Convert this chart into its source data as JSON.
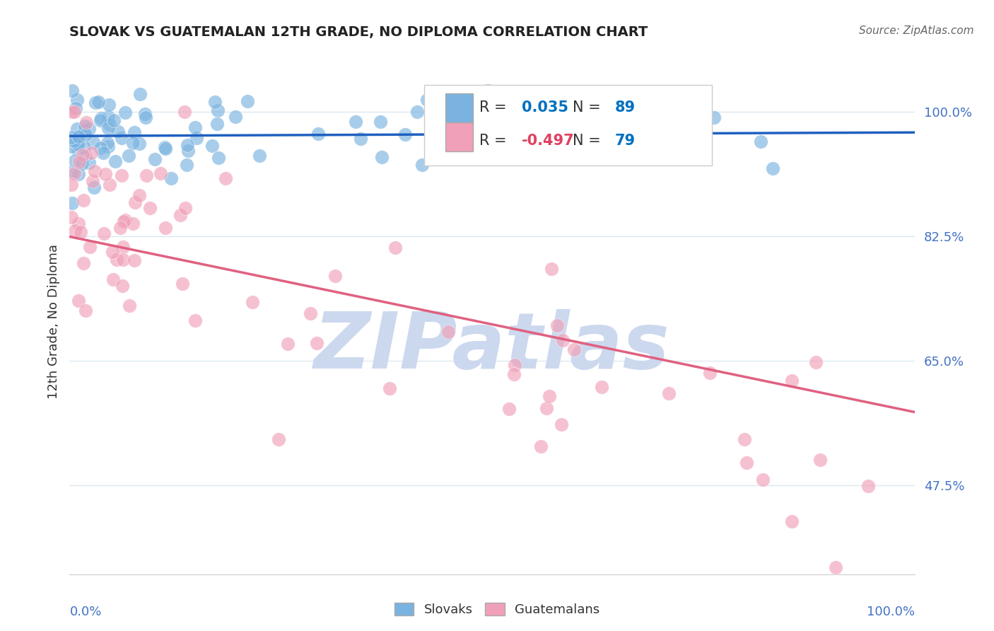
{
  "title": "SLOVAK VS GUATEMALAN 12TH GRADE, NO DIPLOMA CORRELATION CHART",
  "source": "Source: ZipAtlas.com",
  "ylabel": "12th Grade, No Diploma",
  "yticks": [
    47.5,
    65.0,
    82.5,
    100.0
  ],
  "legend_entries": [
    {
      "label": "Slovaks",
      "color": "#85b8e8",
      "R": 0.035,
      "N": 89
    },
    {
      "label": "Guatemalans",
      "color": "#f4a0b0",
      "R": -0.497,
      "N": 79
    }
  ],
  "blue_color": "#7ab3e0",
  "pink_color": "#f0a0b8",
  "trend_blue_color": "#2060c0",
  "trend_pink_color": "#e06080",
  "r_blue_color": "#0070c0",
  "r_pink_color": "#e04060",
  "n_color": "#0070c0",
  "watermark_color": "#ccd8ee",
  "background_color": "#ffffff",
  "grid_color": "#dce8f0",
  "axis_color": "#cccccc",
  "label_color": "#4472c4",
  "text_color": "#333333"
}
